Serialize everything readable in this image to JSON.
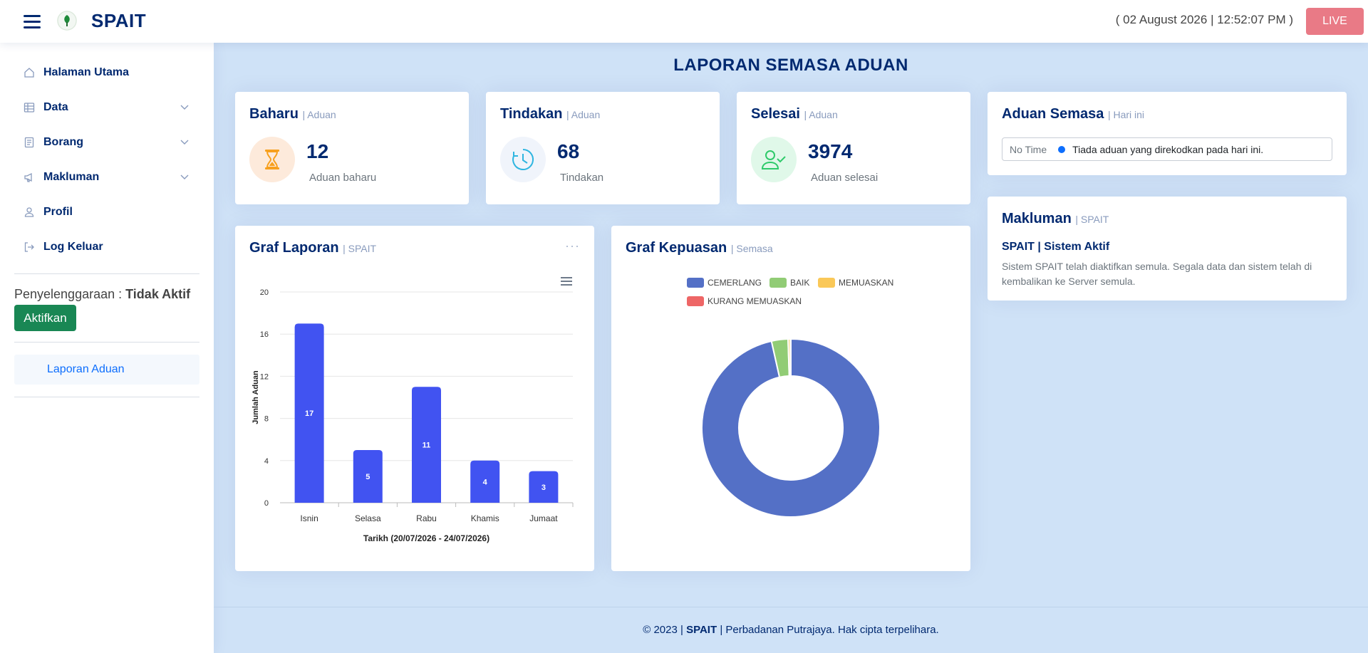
{
  "header": {
    "brand": "SPAIT",
    "datetime": "( 02 August 2026 | 12:52:07 PM )",
    "live_label": "LIVE"
  },
  "sidebar": {
    "items": [
      {
        "label": "Halaman Utama",
        "icon": "house-icon"
      },
      {
        "label": "Data",
        "icon": "table-icon",
        "expandable": true
      },
      {
        "label": "Borang",
        "icon": "form-icon",
        "expandable": true
      },
      {
        "label": "Makluman",
        "icon": "megaphone-icon",
        "expandable": true
      },
      {
        "label": "Profil",
        "icon": "person-icon"
      },
      {
        "label": "Log Keluar",
        "icon": "logout-icon"
      }
    ],
    "maintenance_label": "Penyelenggaraan :",
    "maintenance_status": "Tidak Aktif",
    "activate_button": "Aktifkan",
    "report_link": "Laporan Aduan"
  },
  "main": {
    "title": "LAPORAN SEMASA ADUAN",
    "stats": [
      {
        "title": "Baharu",
        "sub": "| Aduan",
        "value": "12",
        "label": "Aduan baharu",
        "icon": "hourglass-icon",
        "color": "#f7a01e",
        "bg": "#fdeadb"
      },
      {
        "title": "Tindakan",
        "sub": "| Aduan",
        "value": "68",
        "label": "Tindakan",
        "icon": "clock-icon",
        "color": "#2eb5e0",
        "bg": "#f0f4fb"
      },
      {
        "title": "Selesai",
        "sub": "| Aduan",
        "value": "3974",
        "label": "Aduan selesai",
        "icon": "person-check-icon",
        "color": "#2eca6a",
        "bg": "#e0f8e9"
      }
    ],
    "current": {
      "title": "Aduan Semasa",
      "sub": "| Hari ini",
      "time_label": "No Time",
      "message": "Tiada aduan yang direkodkan pada hari ini."
    },
    "notice": {
      "title": "Makluman",
      "sub": "| SPAIT",
      "heading": "SPAIT | Sistem Aktif",
      "body": "Sistem SPAIT telah diaktifkan semula. Segala data dan sistem telah di kembalikan ke Server semula."
    },
    "bar_card": {
      "title": "Graf Laporan",
      "sub": "| SPAIT"
    },
    "pie_card": {
      "title": "Graf Kepuasan",
      "sub": "| Semasa"
    }
  },
  "chart_data": [
    {
      "type": "bar",
      "categories": [
        "Isnin",
        "Selasa",
        "Rabu",
        "Khamis",
        "Jumaat"
      ],
      "values": [
        17,
        5,
        11,
        4,
        3
      ],
      "xlabel": "Tarikh (20/07/2026 - 24/07/2026)",
      "ylabel": "Jumlah Aduan",
      "ylim": [
        0,
        20
      ],
      "yticks": [
        0,
        4,
        8,
        12,
        16,
        20
      ],
      "color": "#4153f1",
      "data_labels": true,
      "grid": true
    },
    {
      "type": "pie",
      "donut": true,
      "legend_position": "top",
      "labels": [
        "CEMERLANG",
        "BAIK",
        "MEMUASKAN",
        "KURANG MEMUASKAN"
      ],
      "values": [
        96.5,
        3,
        0.4,
        0.1
      ],
      "colors": [
        "#5470c6",
        "#91cc75",
        "#fac858",
        "#ee6666"
      ]
    }
  ],
  "footer": {
    "copyright": "© 2023 |",
    "brand": "SPAIT",
    "rest": "| Perbadanan Putrajaya. Hak cipta terpelihara."
  }
}
